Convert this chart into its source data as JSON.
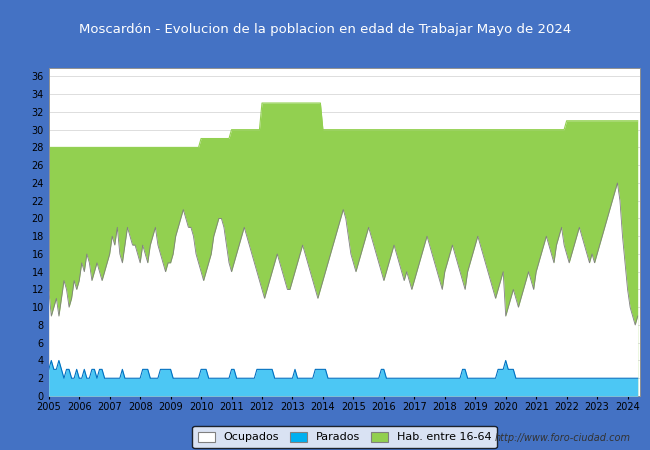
{
  "title": "Moscardón - Evolucion de la poblacion en edad de Trabajar Mayo de 2024",
  "ylabel_ticks": [
    0,
    2,
    4,
    6,
    8,
    10,
    12,
    14,
    16,
    18,
    20,
    22,
    24,
    26,
    28,
    30,
    32,
    34,
    36
  ],
  "ylim": [
    0,
    37
  ],
  "hab_16_64_per_year": [
    28,
    28,
    28,
    28,
    28,
    29,
    30,
    33,
    33,
    30,
    30,
    30,
    30,
    30,
    30,
    30,
    30,
    31,
    31,
    31
  ],
  "ocupados_monthly": [
    12,
    9,
    10,
    11,
    9,
    11,
    13,
    12,
    10,
    11,
    13,
    12,
    13,
    15,
    14,
    16,
    15,
    13,
    14,
    15,
    14,
    13,
    14,
    15,
    16,
    18,
    17,
    19,
    16,
    15,
    17,
    19,
    18,
    17,
    17,
    16,
    15,
    17,
    16,
    15,
    17,
    18,
    19,
    17,
    16,
    15,
    14,
    15,
    15,
    16,
    18,
    19,
    20,
    21,
    20,
    19,
    19,
    18,
    16,
    15,
    14,
    13,
    14,
    15,
    16,
    18,
    19,
    20,
    20,
    19,
    17,
    15,
    14,
    15,
    16,
    17,
    18,
    19,
    18,
    17,
    16,
    15,
    14,
    13,
    12,
    11,
    12,
    13,
    14,
    15,
    16,
    15,
    14,
    13,
    12,
    12,
    13,
    14,
    15,
    16,
    17,
    16,
    15,
    14,
    13,
    12,
    11,
    12,
    13,
    14,
    15,
    16,
    17,
    18,
    19,
    20,
    21,
    20,
    18,
    16,
    15,
    14,
    15,
    16,
    17,
    18,
    19,
    18,
    17,
    16,
    15,
    14,
    13,
    14,
    15,
    16,
    17,
    16,
    15,
    14,
    13,
    14,
    13,
    12,
    13,
    14,
    15,
    16,
    17,
    18,
    17,
    16,
    15,
    14,
    13,
    12,
    14,
    15,
    16,
    17,
    16,
    15,
    14,
    13,
    12,
    14,
    15,
    16,
    17,
    18,
    17,
    16,
    15,
    14,
    13,
    12,
    11,
    12,
    13,
    14,
    9,
    10,
    11,
    12,
    11,
    10,
    11,
    12,
    13,
    14,
    13,
    12,
    14,
    15,
    16,
    17,
    18,
    17,
    16,
    15,
    17,
    18,
    19,
    17,
    16,
    15,
    16,
    17,
    18,
    19,
    18,
    17,
    16,
    15,
    16,
    15,
    16,
    17,
    18,
    19,
    20,
    21,
    22,
    23,
    24,
    22,
    18,
    15,
    12,
    10,
    9,
    8,
    9
  ],
  "parados_monthly": [
    3,
    4,
    3,
    3,
    4,
    3,
    2,
    3,
    3,
    2,
    2,
    3,
    2,
    2,
    3,
    2,
    2,
    3,
    3,
    2,
    3,
    3,
    2,
    2,
    2,
    2,
    2,
    2,
    2,
    3,
    2,
    2,
    2,
    2,
    2,
    2,
    2,
    3,
    3,
    3,
    2,
    2,
    2,
    2,
    3,
    3,
    3,
    3,
    3,
    2,
    2,
    2,
    2,
    2,
    2,
    2,
    2,
    2,
    2,
    2,
    3,
    3,
    3,
    2,
    2,
    2,
    2,
    2,
    2,
    2,
    2,
    2,
    3,
    3,
    2,
    2,
    2,
    2,
    2,
    2,
    2,
    2,
    3,
    3,
    3,
    3,
    3,
    3,
    3,
    2,
    2,
    2,
    2,
    2,
    2,
    2,
    2,
    3,
    2,
    2,
    2,
    2,
    2,
    2,
    2,
    3,
    3,
    3,
    3,
    3,
    2,
    2,
    2,
    2,
    2,
    2,
    2,
    2,
    2,
    2,
    2,
    2,
    2,
    2,
    2,
    2,
    2,
    2,
    2,
    2,
    2,
    3,
    3,
    2,
    2,
    2,
    2,
    2,
    2,
    2,
    2,
    2,
    2,
    2,
    2,
    2,
    2,
    2,
    2,
    2,
    2,
    2,
    2,
    2,
    2,
    2,
    2,
    2,
    2,
    2,
    2,
    2,
    2,
    3,
    3,
    2,
    2,
    2,
    2,
    2,
    2,
    2,
    2,
    2,
    2,
    2,
    2,
    3,
    3,
    3,
    4,
    3,
    3,
    3,
    2,
    2,
    2,
    2,
    2,
    2,
    2,
    2,
    2,
    2,
    2,
    2,
    2,
    2,
    2,
    2,
    2,
    2,
    2,
    2,
    2,
    2,
    2,
    2,
    2,
    2,
    2,
    2,
    2,
    2,
    2,
    2,
    2,
    2,
    2,
    2,
    2,
    2,
    2,
    2,
    2,
    2,
    2,
    2,
    2,
    2,
    2,
    2,
    2
  ],
  "url_text": "http://www.foro-ciudad.com",
  "color_hab": "#92d050",
  "color_ocupados_fill": "#ffffff",
  "color_ocupados_line": "#808080",
  "color_parados": "#00b0f0",
  "color_parados_line": "#0070c0",
  "grid_color": "#d0d0d0",
  "plot_bg": "#ffffff",
  "outer_bg": "#4472c4",
  "title_color": "white",
  "title_fontsize": 9.5,
  "tick_fontsize": 7,
  "legend_fontsize": 8,
  "url_fontsize": 7
}
